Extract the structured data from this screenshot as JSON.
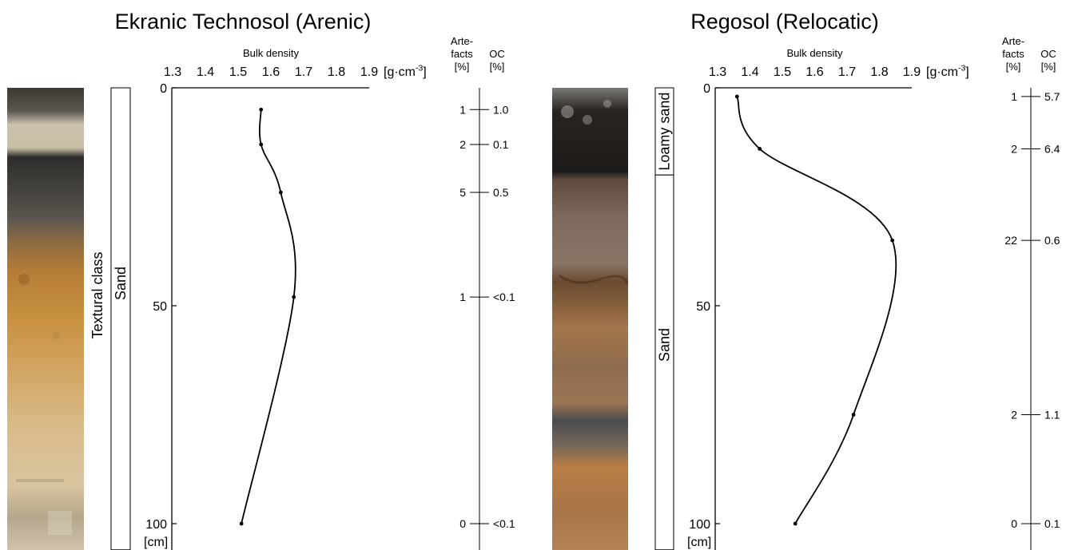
{
  "chart_data": [
    {
      "type": "line",
      "title": "Ekranic Technosol (Arenic)",
      "xlabel": "Bulk density",
      "x_unit": "[g·cm⁻³]",
      "ylabel_unit": "[cm]",
      "xlim": [
        1.3,
        1.9
      ],
      "x_ticks": [
        "1.3",
        "1.4",
        "1.5",
        "1.6",
        "1.7",
        "1.8",
        "1.9"
      ],
      "ylim": [
        0,
        100
      ],
      "y_ticks": [
        "0",
        "50",
        "100"
      ],
      "series": [
        {
          "points": [
            {
              "x": 1.57,
              "y": 5
            },
            {
              "x": 1.57,
              "y": 13
            },
            {
              "x": 1.63,
              "y": 24
            },
            {
              "x": 1.67,
              "y": 48
            },
            {
              "x": 1.51,
              "y": 100
            }
          ]
        }
      ],
      "textural_class_label": "Textural class",
      "textural_classes": [
        {
          "label": "Sand",
          "from": 0,
          "to": 106
        }
      ],
      "side_table": {
        "artefacts_header_1": "Arte-",
        "artefacts_header_2": "facts",
        "artefacts_unit": "[%]",
        "oc_header": "OC",
        "oc_unit": "[%]",
        "rows": [
          {
            "depth": 5,
            "artefacts": "1",
            "oc": "1.0"
          },
          {
            "depth": 13,
            "artefacts": "2",
            "oc": "0.1"
          },
          {
            "depth": 24,
            "artefacts": "5",
            "oc": "0.5"
          },
          {
            "depth": 48,
            "artefacts": "1",
            "oc": "<0.1"
          },
          {
            "depth": 100,
            "artefacts": "0",
            "oc": "<0.1"
          }
        ]
      }
    },
    {
      "type": "line",
      "title": "Regosol (Relocatic)",
      "xlabel": "Bulk density",
      "x_unit": "[g·cm⁻³]",
      "ylabel_unit": "[cm]",
      "xlim": [
        1.3,
        1.9
      ],
      "x_ticks": [
        "1.3",
        "1.4",
        "1.5",
        "1.6",
        "1.7",
        "1.8",
        "1.9"
      ],
      "ylim": [
        0,
        100
      ],
      "y_ticks": [
        "0",
        "50",
        "100"
      ],
      "series": [
        {
          "points": [
            {
              "x": 1.36,
              "y": 2
            },
            {
              "x": 1.43,
              "y": 14
            },
            {
              "x": 1.84,
              "y": 35
            },
            {
              "x": 1.72,
              "y": 75
            },
            {
              "x": 1.54,
              "y": 100
            }
          ]
        }
      ],
      "textural_classes": [
        {
          "label": "Loamy sand",
          "from": 0,
          "to": 20
        },
        {
          "label": "Sand",
          "from": 20,
          "to": 106
        }
      ],
      "side_table": {
        "artefacts_header_1": "Arte-",
        "artefacts_header_2": "facts",
        "artefacts_unit": "[%]",
        "oc_header": "OC",
        "oc_unit": "[%]",
        "rows": [
          {
            "depth": 2,
            "artefacts": "1",
            "oc": "5.7"
          },
          {
            "depth": 14,
            "artefacts": "2",
            "oc": "6.4"
          },
          {
            "depth": 35,
            "artefacts": "22",
            "oc": "0.6"
          },
          {
            "depth": 75,
            "artefacts": "2",
            "oc": "1.1"
          },
          {
            "depth": 100,
            "artefacts": "0",
            "oc": "0.1"
          }
        ]
      }
    }
  ]
}
